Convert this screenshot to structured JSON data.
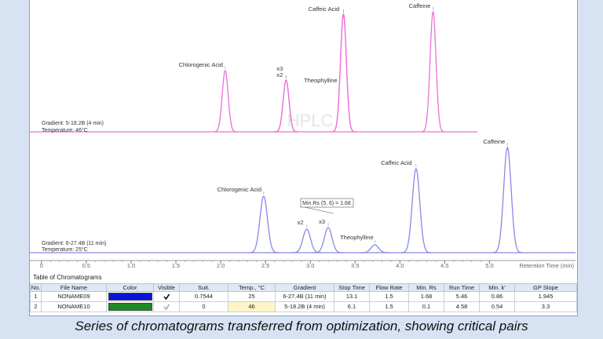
{
  "chart_data": {
    "type": "chromatogram",
    "xlabel": "Retention Time (min)",
    "watermark": "HPLC",
    "xlim": [
      -0.13,
      5.96
    ],
    "xticks": [
      0,
      0.5,
      {
        "value": 1,
        "label": "1.0"
      },
      1.5,
      {
        "value": 2,
        "label": "2.0"
      },
      2.5,
      {
        "value": 3,
        "label": "3.0"
      },
      3.5,
      {
        "value": 4,
        "label": "4.0"
      },
      4.5,
      {
        "value": 5,
        "label": "5.0"
      }
    ],
    "ylim": [
      0,
      160
    ],
    "series": [
      {
        "color": "#ee6fd8",
        "notes": [
          "Gradient: 5-18.2B (4 min)",
          "Temperature: 46°C"
        ],
        "peaks": [
          {
            "label": "Chlorogenic Acid",
            "x": 2.05,
            "height": 78
          },
          {
            "label": "x3",
            "x": 2.73,
            "height": 66
          },
          {
            "label": "x2",
            "x": 2.73,
            "height": 66
          },
          {
            "label": "Theophylline",
            "x": 3.37,
            "height": 150
          },
          {
            "label": "Caffeic Acid",
            "x": 3.37,
            "height": 150
          },
          {
            "label": "Caffeine",
            "x": 4.37,
            "height": 153
          }
        ]
      },
      {
        "color": "#8a88e6",
        "notes": [
          "Gradient: 6-27.4B (11 min)",
          "Temperature: 25°C"
        ],
        "peaks": [
          {
            "label": "Chlorogenic Acid",
            "x": 2.48,
            "height": 72
          },
          {
            "label": "x2",
            "x": 2.96,
            "height": 30
          },
          {
            "label": "x3",
            "x": 3.2,
            "height": 32
          },
          {
            "label": "Theophylline",
            "x": 3.72,
            "height": 10
          },
          {
            "label": "Caffeic Acid",
            "x": 4.18,
            "height": 107
          },
          {
            "label": "Caffeine",
            "x": 5.2,
            "height": 134
          }
        ],
        "annotation": "Min Rs (5, 6) = 1.68"
      }
    ]
  },
  "table": {
    "title": "Table of Chromatograms",
    "header": [
      "No.",
      "File Name",
      "Color",
      "Visible",
      "Suit.",
      "Temp., °C",
      "Gradient",
      "Stop Time",
      "Flow Rate",
      "Min. Rs",
      "Run Time",
      "Min. k'",
      "GP Slope"
    ],
    "rows": [
      {
        "cells": [
          "1",
          "NONAME09",
          null,
          null,
          "0.7544",
          "25",
          "6-27.4B (11 min)",
          "13.1",
          "1.5",
          "1.68",
          "5.46",
          "0.86",
          "1.945"
        ],
        "color": "#0a14d8",
        "visible": true
      },
      {
        "cells": [
          "2",
          "NONAME10",
          null,
          null,
          "0",
          "46",
          "5-18.2B (4 min)",
          "6.1",
          "1.5",
          "0.1",
          "4.58",
          "0.54",
          "3.3"
        ],
        "color": "#1e8a24",
        "visible": true
      }
    ]
  },
  "caption": "Series of chromatograms transferred from optimization, showing critical pairs"
}
